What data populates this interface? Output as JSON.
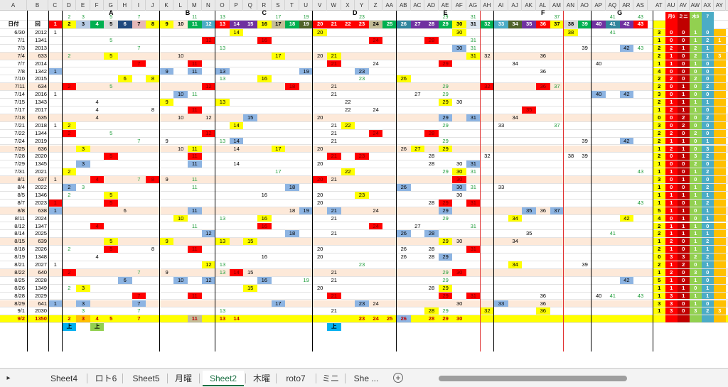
{
  "col_headers": [
    "A",
    "B",
    "C",
    "D",
    "E",
    "F",
    "G",
    "H",
    "I",
    "J",
    "K",
    "L",
    "M",
    "N",
    "O",
    "P",
    "Q",
    "R",
    "S",
    "T",
    "U",
    "V",
    "W",
    "X",
    "Y",
    "Z",
    "AA",
    "AB",
    "AC",
    "AD",
    "AE",
    "AF",
    "AG",
    "AH",
    "AI",
    "AJ",
    "AK",
    "AL",
    "AM",
    "AN",
    "AO",
    "AP",
    "AQ",
    "AR",
    "AS",
    "AT",
    "AU",
    "AV",
    "AW",
    "AX",
    "AY"
  ],
  "group_labels": [
    {
      "label": "A"
    },
    {
      "label": "B"
    },
    {
      "label": "C"
    },
    {
      "label": "D"
    },
    {
      "label": "E"
    },
    {
      "label": "F"
    },
    {
      "label": "G"
    }
  ],
  "header_row": {
    "date_label": "日付",
    "kai_label": "回",
    "numbers_top": [
      "2",
      "3",
      "5",
      "7",
      "11",
      "13",
      "17",
      "19",
      "23",
      "29",
      "31",
      "37",
      "41",
      "43"
    ],
    "right_labels": [
      "月6",
      "ミニ",
      "木6",
      "7"
    ]
  },
  "numbers_row": [
    "1",
    "2",
    "3",
    "4",
    "5",
    "6",
    "7",
    "8",
    "9",
    "10",
    "11",
    "12",
    "13",
    "14",
    "15",
    "16",
    "17",
    "18",
    "19",
    "20",
    "21",
    "22",
    "23",
    "24",
    "25",
    "26",
    "27",
    "28",
    "29",
    "30",
    "31",
    "32",
    "33",
    "34",
    "35",
    "36",
    "37",
    "38",
    "39",
    "40",
    "41",
    "42",
    "43"
  ],
  "colors": {
    "red": "#ff0000",
    "yellow": "#ffff00",
    "blue": "#8db4e2",
    "green": "#00b050",
    "darkred": "#c00000",
    "purple": "#7030a0",
    "orange": "#ffc000",
    "teal": "#00b0f0"
  },
  "rows": [
    {
      "date": "6/30",
      "kai": "2012",
      "vals": {
        "1": "1",
        "14": "14",
        "20": "20",
        "30": "30",
        "38": "38",
        "41": "41"
      },
      "right": [
        "3",
        "0",
        "0",
        "1",
        "0"
      ]
    },
    {
      "date": "7/1",
      "kai": "1341",
      "vals": {
        "5": "5",
        "12": "12",
        "16": "16",
        "24": "24",
        "28": "28",
        "31": "31"
      },
      "right": [
        "1",
        "0",
        "0",
        "1",
        "2",
        "1"
      ]
    },
    {
      "date": "7/3",
      "kai": "2013",
      "vals": {
        "7": "7",
        "13": "13",
        "30": "30",
        "31": "31",
        "39": "39",
        "42": "42",
        "43": "43"
      },
      "right": [
        "2",
        "2",
        "1",
        "2",
        "1"
      ]
    },
    {
      "date": "7/4",
      "kai": "633",
      "vals": {
        "2": "2",
        "5": "5",
        "10": "10",
        "17": "17",
        "20": "20",
        "21": "21",
        "31": "31",
        "32": "32",
        "36": "36"
      },
      "right": [
        "2",
        "1",
        "0",
        "2",
        "1",
        "3"
      ]
    },
    {
      "date": "7/7",
      "kai": "2014",
      "vals": {
        "7": "7",
        "11": "11",
        "21": "21",
        "24": "24",
        "29": "29",
        "34": "34",
        "40": "40"
      },
      "right": [
        "1",
        "1",
        "0",
        "1",
        "0"
      ]
    },
    {
      "date": "7/8",
      "kai": "1342",
      "vals": {
        "1": "1",
        "9": "9",
        "11": "11",
        "13": "13",
        "19": "19",
        "23": "23",
        "36": "36"
      },
      "right": [
        "4",
        "0",
        "0",
        "0",
        "0"
      ]
    },
    {
      "date": "7/10",
      "kai": "2015",
      "vals": {
        "6": "6",
        "8": "8",
        "13": "13",
        "16": "16",
        "23": "23",
        "26": "26"
      },
      "right": [
        "2",
        "2",
        "0",
        "2",
        "0"
      ]
    },
    {
      "date": "7/11",
      "kai": "634",
      "vals": {
        "2": "2",
        "5": "5",
        "12": "12",
        "18": "18",
        "21": "21",
        "29": "29",
        "32": "32",
        "36": "36",
        "37": "37"
      },
      "right": [
        "2",
        "0",
        "1",
        "0",
        "2"
      ]
    },
    {
      "date": "7/14",
      "kai": "2016",
      "vals": {
        "1": "1",
        "10": "10",
        "11": "11",
        "21": "21",
        "27": "27",
        "29": "29",
        "40": "40",
        "42": "42"
      },
      "right": [
        "3",
        "0",
        "1",
        "0",
        "0"
      ]
    },
    {
      "date": "7/15",
      "kai": "1343",
      "vals": {
        "4": "4",
        "9": "9",
        "13": "13",
        "22": "22",
        "29": "29",
        "30": "30"
      },
      "right": [
        "2",
        "1",
        "1",
        "1",
        "1"
      ]
    },
    {
      "date": "7/17",
      "kai": "2017",
      "vals": {
        "4": "4",
        "8": "8",
        "11": "11",
        "22": "22",
        "24": "24",
        "35": "35"
      },
      "right": [
        "1",
        "2",
        "1",
        "1",
        "0"
      ]
    },
    {
      "date": "7/18",
      "kai": "635",
      "vals": {
        "4": "4",
        "10": "10",
        "12": "12",
        "15": "15",
        "20": "20",
        "29": "29",
        "31": "31",
        "34": "34"
      },
      "right": [
        "0",
        "0",
        "2",
        "0",
        "2"
      ]
    },
    {
      "date": "7/21",
      "kai": "2018",
      "vals": {
        "1": "1",
        "2": "2",
        "14": "14",
        "21": "21",
        "22": "22",
        "29": "29",
        "33": "33",
        "37": "37"
      },
      "right": [
        "3",
        "0",
        "2",
        "0",
        "0"
      ]
    },
    {
      "date": "7/22",
      "kai": "1344",
      "vals": {
        "2": "2",
        "5": "5",
        "12": "12",
        "21": "21",
        "24": "24",
        "28": "28"
      },
      "right": [
        "2",
        "2",
        "0",
        "2",
        "0"
      ]
    },
    {
      "date": "7/24",
      "kai": "2019",
      "vals": {
        "7": "7",
        "9": "9",
        "13": "13",
        "14": "14",
        "21": "21",
        "29": "29",
        "39": "39",
        "42": "42"
      },
      "right": [
        "2",
        "1",
        "1",
        "0",
        "1"
      ]
    },
    {
      "date": "7/25",
      "kai": "636",
      "vals": {
        "3": "3",
        "10": "10",
        "11": "11",
        "14": "14",
        "17": "17",
        "20": "20",
        "26": "26",
        "27": "27",
        "29": "29"
      },
      "right": [
        "1",
        "2",
        "1",
        "0",
        "3"
      ]
    },
    {
      "date": "7/28",
      "kai": "2020",
      "vals": {
        "5": "5",
        "11": "11",
        "21": "21",
        "23": "23",
        "28": "28",
        "32": "32",
        "38": "38",
        "39": "39"
      },
      "right": [
        "2",
        "0",
        "1",
        "3",
        "2"
      ]
    },
    {
      "date": "7/29",
      "kai": "1345",
      "vals": {
        "3": "3",
        "11": "11",
        "14": "14",
        "20": "20",
        "28": "28",
        "30": "30",
        "31": "31"
      },
      "right": [
        "1",
        "0",
        "0",
        "2",
        "0"
      ]
    },
    {
      "date": "7/31",
      "kai": "2021",
      "vals": {
        "2": "2",
        "17": "17",
        "22": "22",
        "29": "29",
        "30": "30",
        "31": "31",
        "43": "43"
      },
      "right": [
        "1",
        "1",
        "0",
        "1",
        "2"
      ]
    },
    {
      "date": "8/1",
      "kai": "637",
      "vals": {
        "1": "1",
        "4": "4",
        "7": "7",
        "8": "8",
        "9": "9",
        "11": "11",
        "20": "20",
        "21": "21",
        "30": "30"
      },
      "right": [
        "3",
        "0",
        "1",
        "0",
        "0"
      ]
    },
    {
      "date": "8/4",
      "kai": "2022",
      "vals": {
        "2": "2",
        "3": "3",
        "11": "11",
        "18": "18",
        "26": "26",
        "30": "30",
        "31": "31",
        "33": "33"
      },
      "right": [
        "1",
        "0",
        "0",
        "1",
        "2"
      ]
    },
    {
      "date": "8/5",
      "kai": "1346",
      "vals": {
        "2": "2",
        "5": "5",
        "16": "16",
        "20": "20",
        "23": "23",
        "30": "30"
      },
      "right": [
        "1",
        "1",
        "1",
        "1",
        "1"
      ]
    },
    {
      "date": "8/7",
      "kai": "2023",
      "vals": {
        "1": "1",
        "5": "5",
        "20": "20",
        "28": "28",
        "29": "29",
        "31": "31",
        "43": "43"
      },
      "right": [
        "1",
        "1",
        "0",
        "1",
        "2"
      ]
    },
    {
      "date": "8/8",
      "kai": "638",
      "vals": {
        "1": "1",
        "6": "6",
        "11": "11",
        "18": "18",
        "19": "19",
        "21": "21",
        "24": "24",
        "29": "29",
        "35": "35",
        "36": "36",
        "37": "37"
      },
      "right": [
        "5",
        "1",
        "1",
        "0",
        "1"
      ]
    },
    {
      "date": "8/11",
      "kai": "2024",
      "vals": {
        "10": "10",
        "13": "13",
        "16": "16",
        "21": "21",
        "29": "29",
        "34": "34",
        "42": "42"
      },
      "right": [
        "4",
        "0",
        "1",
        "0",
        "1"
      ]
    },
    {
      "date": "8/12",
      "kai": "1347",
      "vals": {
        "4": "4",
        "11": "11",
        "16": "16",
        "24": "24",
        "27": "27",
        "31": "31"
      },
      "right": [
        "2",
        "1",
        "1",
        "1",
        "0"
      ]
    },
    {
      "date": "8/14",
      "kai": "2025",
      "vals": {
        "12": "12",
        "18": "18",
        "21": "21",
        "26": "26",
        "28": "28",
        "35": "35",
        "41": "41"
      },
      "right": [
        "2",
        "1",
        "1",
        "1",
        "1"
      ]
    },
    {
      "date": "8/15",
      "kai": "639",
      "vals": {
        "5": "5",
        "9": "9",
        "13": "13",
        "15": "15",
        "29": "29",
        "30": "30",
        "34": "34"
      },
      "right": [
        "1",
        "2",
        "0",
        "1",
        "2"
      ]
    },
    {
      "date": "8/18",
      "kai": "2026",
      "vals": {
        "2": "2",
        "5": "5",
        "8": "8",
        "11": "11",
        "20": "20",
        "26": "26",
        "28": "28",
        "31": "31"
      },
      "right": [
        "2",
        "1",
        "0",
        "1",
        "1"
      ]
    },
    {
      "date": "8/19",
      "kai": "1348",
      "vals": {
        "4": "4",
        "16": "16",
        "20": "20",
        "26": "26",
        "28": "28",
        "29": "29"
      },
      "right": [
        "0",
        "3",
        "3",
        "2",
        "2"
      ]
    },
    {
      "date": "8/21",
      "kai": "2027",
      "vals": {
        "1": "1",
        "12": "12",
        "13": "13",
        "23": "23",
        "34": "34",
        "39": "39"
      },
      "right": [
        "2",
        "1",
        "2",
        "0",
        "1"
      ]
    },
    {
      "date": "8/22",
      "kai": "640",
      "vals": {
        "2": "2",
        "7": "7",
        "9": "9",
        "13": "13",
        "14": "14",
        "15": "15",
        "21": "21",
        "29": "29",
        "30": "30"
      },
      "right": [
        "1",
        "2",
        "0",
        "3",
        "0"
      ]
    },
    {
      "date": "8/25",
      "kai": "2028",
      "vals": {
        "6": "6",
        "10": "10",
        "12": "12",
        "16": "16",
        "19": "19",
        "21": "21",
        "29": "29",
        "42": "42"
      },
      "right": [
        "5",
        "1",
        "0",
        "1",
        "0"
      ]
    },
    {
      "date": "8/26",
      "kai": "1349",
      "vals": {
        "2": "2",
        "3": "3",
        "15": "15",
        "20": "20",
        "28": "28",
        "29": "29"
      },
      "right": [
        "1",
        "1",
        "1",
        "0",
        "1"
      ]
    },
    {
      "date": "8/28",
      "kai": "2029",
      "vals": {
        "7": "7",
        "11": "11",
        "21": "21",
        "29": "29",
        "31": "31",
        "36": "36",
        "40": "40",
        "41": "41",
        "43": "43"
      },
      "right": [
        "1",
        "3",
        "1",
        "1",
        "1"
      ]
    },
    {
      "date": "8/29",
      "kai": "641",
      "vals": {
        "1": "1",
        "3": "3",
        "7": "7",
        "17": "17",
        "23": "23",
        "24": "24",
        "30": "30",
        "33": "33",
        "36": "36"
      },
      "right": [
        "3",
        "3",
        "0",
        "1",
        "0"
      ]
    },
    {
      "date": "9/1",
      "kai": "2030",
      "vals": {
        "3": "3",
        "7": "7",
        "13": "13",
        "21": "21",
        "28": "28",
        "29": "29",
        "32": "32",
        "36": "36"
      },
      "right": [
        "1",
        "3",
        "0",
        "3",
        "2",
        "3"
      ]
    }
  ],
  "last_row": {
    "date": "9/2",
    "kai": "1350",
    "vals": {
      "2": "2",
      "3": "3",
      "4": "4",
      "5": "5",
      "7": "7",
      "11": "11",
      "13": "13",
      "14": "14",
      "25": "25",
      "26": "26",
      "23": "23",
      "24": "24",
      "28": "28",
      "29": "29",
      "30": "30"
    },
    "tags": [
      "上",
      "上",
      "上"
    ]
  },
  "tabs": {
    "nav_arrow": "▸",
    "items": [
      {
        "label": "Sheet4"
      },
      {
        "label": "ロト6"
      },
      {
        "label": "Sheet5"
      },
      {
        "label": "月曜"
      },
      {
        "label": "Sheet2",
        "active": true
      },
      {
        "label": "木曜"
      },
      {
        "label": "roto7"
      },
      {
        "label": "ミニ"
      },
      {
        "label": "She ..."
      }
    ],
    "add_label": "+"
  }
}
